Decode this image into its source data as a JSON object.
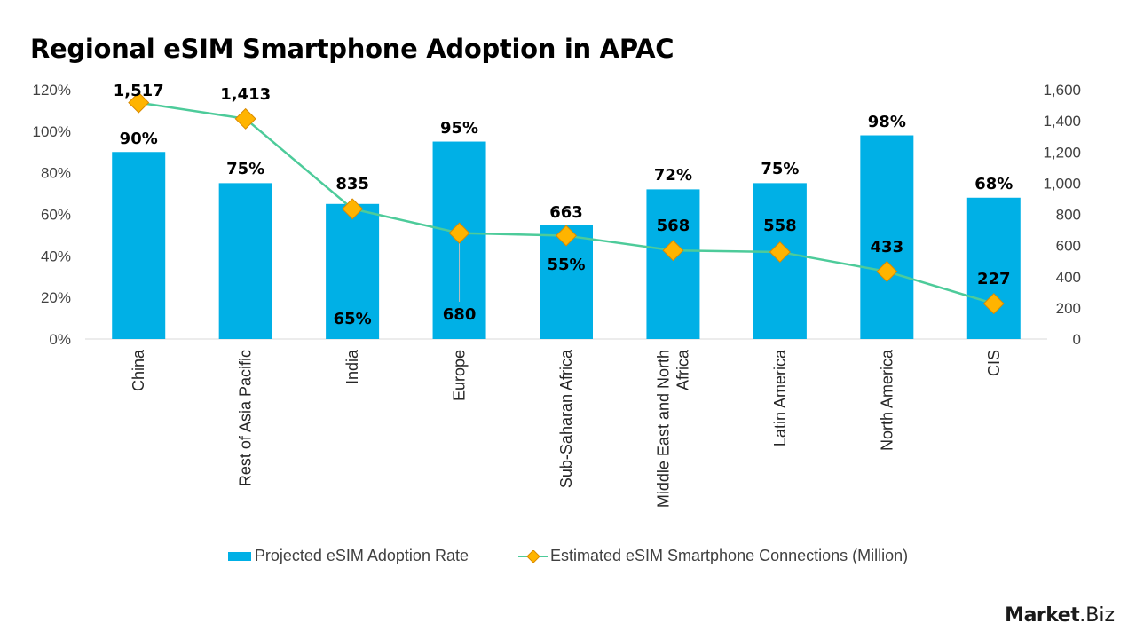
{
  "title": "Regional eSIM Smartphone Adoption in APAC",
  "chart_data": {
    "type": "bar+line",
    "title": "Regional eSIM Smartphone Adoption in APAC",
    "categories": [
      "China",
      "Rest of Asia Pacific",
      "India",
      "Europe",
      "Sub-Saharan Africa",
      "Middle East and North Africa",
      "Latin America",
      "North America",
      "CIS"
    ],
    "series": [
      {
        "name": "Projected eSIM Adoption Rate",
        "type": "bar",
        "axis": "left",
        "values": [
          90,
          75,
          65,
          95,
          55,
          72,
          75,
          98,
          68
        ],
        "labels": [
          "90%",
          "75%",
          "65%",
          "95%",
          "55%",
          "72%",
          "75%",
          "98%",
          "68%"
        ],
        "color": "#00B0E6"
      },
      {
        "name": "Estimated eSIM Smartphone Connections (Million)",
        "type": "line",
        "axis": "right",
        "values": [
          1517,
          1413,
          835,
          680,
          663,
          568,
          558,
          433,
          227
        ],
        "labels": [
          "1,517",
          "1,413",
          "835",
          "680",
          "663",
          "568",
          "558",
          "433",
          "227"
        ],
        "line_color": "#4DCB9A",
        "marker_color": "#FFB400",
        "marker_border": "#D98A00"
      }
    ],
    "y_left": {
      "range": [
        0,
        120
      ],
      "ticks": [
        "0%",
        "20%",
        "40%",
        "60%",
        "80%",
        "100%",
        "120%"
      ]
    },
    "y_right": {
      "range": [
        0,
        1600
      ],
      "ticks": [
        "0",
        "200",
        "400",
        "600",
        "800",
        "1,000",
        "1,200",
        "1,400",
        "1,600"
      ]
    },
    "grid": false,
    "legend_position": "bottom"
  },
  "legend": {
    "bar_label": "Projected eSIM Adoption Rate",
    "line_label": "Estimated eSIM Smartphone Connections (Million)"
  },
  "logo": {
    "part1": "Market",
    "part2": ".Biz"
  }
}
